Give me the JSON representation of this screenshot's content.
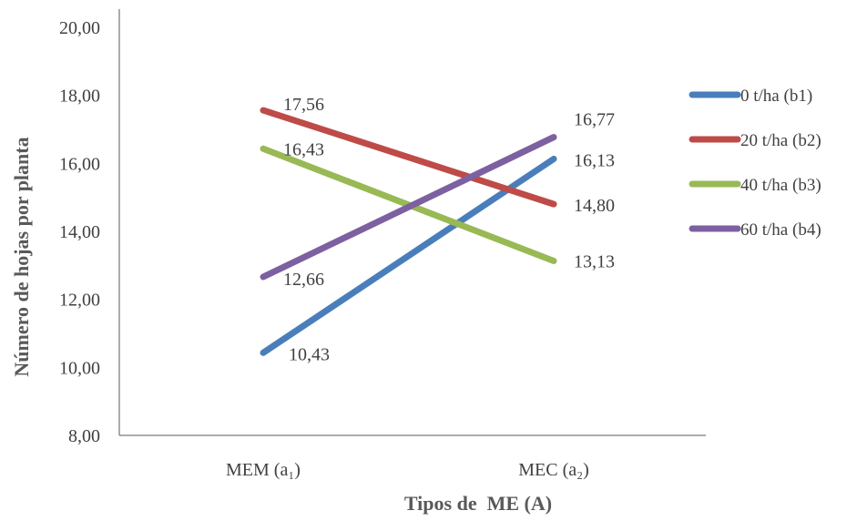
{
  "chart_data": {
    "type": "line",
    "xlabel": "Tipos de  ME (A)",
    "ylabel": "Número de hojas por planta",
    "ylim": [
      8,
      20
    ],
    "yticks": [
      "8,00",
      "10,00",
      "12,00",
      "14,00",
      "16,00",
      "18,00",
      "20,00"
    ],
    "categories": [
      "MEM (a₁)",
      "MEC (a₂)"
    ],
    "legend_position": "right",
    "series": [
      {
        "name": "0 t/ha (b1)",
        "color": "#4a7ebb",
        "values": [
          10.43,
          16.13
        ],
        "labels": [
          "10,43",
          "16,13"
        ]
      },
      {
        "name": "20 t/ha (b2)",
        "color": "#be4b48",
        "values": [
          17.56,
          14.8
        ],
        "labels": [
          "17,56",
          "14,80"
        ]
      },
      {
        "name": "40 t/ha (b3)",
        "color": "#98b954",
        "values": [
          16.43,
          13.13
        ],
        "labels": [
          "16,43",
          "13,13"
        ]
      },
      {
        "name": "60 t/ha (b4)",
        "color": "#7d60a0",
        "values": [
          12.66,
          16.77
        ],
        "labels": [
          "12,66",
          "16,77"
        ]
      }
    ]
  }
}
